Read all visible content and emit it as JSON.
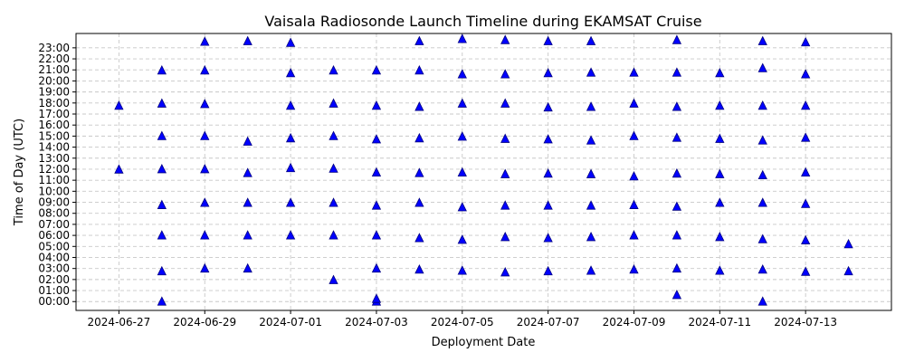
{
  "chart_data": {
    "type": "scatter",
    "title": "Vaisala Radiosonde Launch Timeline during EKAMSAT Cruise",
    "xlabel": "Deployment Date",
    "ylabel": "Time of Day (UTC)",
    "xlim": [
      "2024-06-26",
      "2024-07-15"
    ],
    "ylim": [
      -0.8,
      24.3
    ],
    "grid": true,
    "marker": "triangle-up",
    "color": "#0000ff",
    "edge_color": "#000080",
    "x_ticks": [
      "2024-06-27",
      "2024-06-29",
      "2024-07-01",
      "2024-07-03",
      "2024-07-05",
      "2024-07-07",
      "2024-07-09",
      "2024-07-11",
      "2024-07-13"
    ],
    "y_ticks": [
      "00:00",
      "01:00",
      "02:00",
      "03:00",
      "04:00",
      "05:00",
      "06:00",
      "07:00",
      "08:00",
      "09:00",
      "10:00",
      "11:00",
      "12:00",
      "13:00",
      "14:00",
      "15:00",
      "16:00",
      "17:00",
      "18:00",
      "19:00",
      "20:00",
      "21:00",
      "22:00",
      "23:00"
    ],
    "points": [
      {
        "date": "2024-06-27",
        "times": [
          11.97,
          17.75
        ]
      },
      {
        "date": "2024-06-28",
        "times": [
          0.0,
          2.75,
          6.0,
          8.75,
          12.0,
          15.0,
          17.95,
          20.95
        ]
      },
      {
        "date": "2024-06-29",
        "times": [
          3.0,
          6.0,
          8.95,
          12.0,
          15.0,
          17.9,
          20.95,
          23.55
        ]
      },
      {
        "date": "2024-06-30",
        "times": [
          3.0,
          6.0,
          8.95,
          11.65,
          14.5,
          23.6
        ]
      },
      {
        "date": "2024-07-01",
        "times": [
          6.0,
          8.95,
          12.1,
          14.8,
          17.75,
          20.7,
          23.45
        ]
      },
      {
        "date": "2024-07-02",
        "times": [
          1.95,
          6.0,
          8.95,
          12.05,
          15.0,
          17.95,
          20.95
        ]
      },
      {
        "date": "2024-07-03",
        "times": [
          0.0,
          0.25,
          3.0,
          6.0,
          8.7,
          11.7,
          14.7,
          17.75,
          20.95
        ]
      },
      {
        "date": "2024-07-04",
        "times": [
          2.9,
          5.75,
          8.95,
          11.65,
          14.8,
          17.65,
          20.95,
          23.6
        ]
      },
      {
        "date": "2024-07-05",
        "times": [
          2.8,
          5.6,
          8.55,
          11.7,
          14.95,
          17.95,
          20.6,
          23.8
        ]
      },
      {
        "date": "2024-07-06",
        "times": [
          2.65,
          5.85,
          8.7,
          11.55,
          14.75,
          17.95,
          20.6,
          23.7
        ]
      },
      {
        "date": "2024-07-07",
        "times": [
          2.75,
          5.75,
          8.7,
          11.6,
          14.7,
          17.6,
          20.7,
          23.6
        ]
      },
      {
        "date": "2024-07-08",
        "times": [
          2.8,
          5.85,
          8.7,
          11.55,
          14.6,
          17.65,
          20.75,
          23.6
        ]
      },
      {
        "date": "2024-07-09",
        "times": [
          2.9,
          6.0,
          8.75,
          11.35,
          15.0,
          17.95,
          20.75
        ]
      },
      {
        "date": "2024-07-10",
        "times": [
          0.6,
          3.0,
          6.0,
          8.6,
          11.6,
          14.85,
          17.65,
          20.75,
          23.7
        ]
      },
      {
        "date": "2024-07-11",
        "times": [
          2.8,
          5.85,
          8.95,
          11.55,
          14.75,
          17.75,
          20.7
        ]
      },
      {
        "date": "2024-07-12",
        "times": [
          0.0,
          2.9,
          5.65,
          8.95,
          11.45,
          14.6,
          17.75,
          21.15,
          23.6
        ]
      },
      {
        "date": "2024-07-13",
        "times": [
          2.7,
          5.55,
          8.85,
          11.7,
          14.85,
          17.75,
          20.6,
          23.5
        ]
      },
      {
        "date": "2024-07-14",
        "times": [
          2.75,
          5.2
        ]
      }
    ]
  }
}
